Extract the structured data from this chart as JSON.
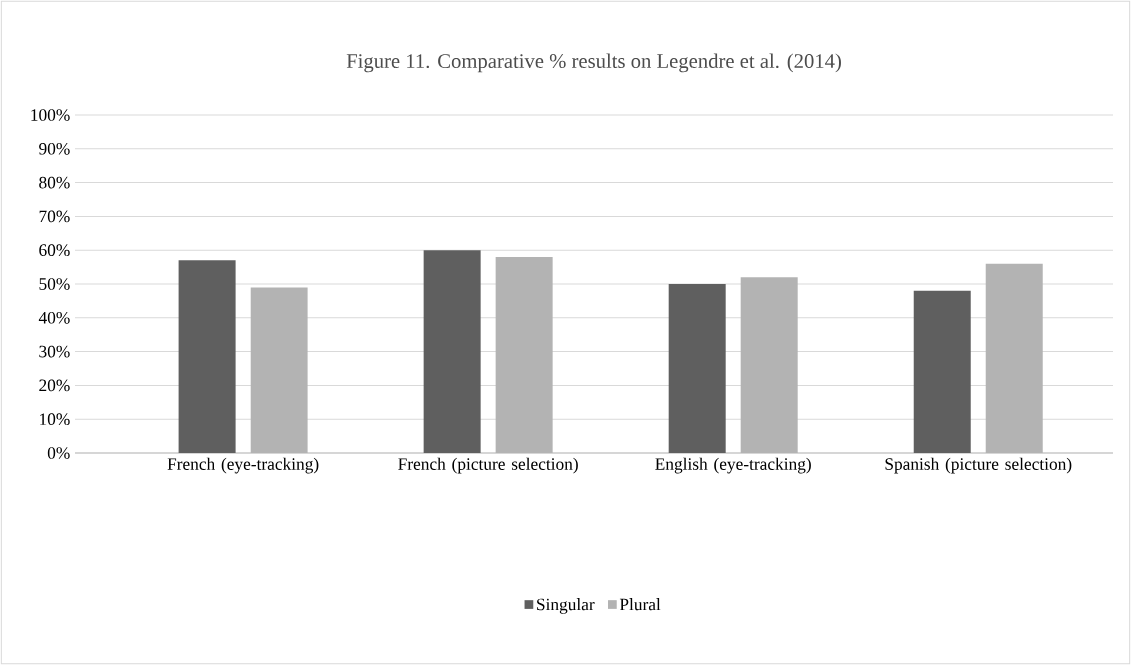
{
  "chart_data": {
    "type": "bar",
    "title": "Figure 11. Comparative % results on Legendre et al. (2014)",
    "categories": [
      "French (eye-tracking)",
      "French (picture selection)",
      "English (eye-tracking)",
      "Spanish (picture selection)"
    ],
    "series": [
      {
        "name": "Singular",
        "color": "#5f5f5f",
        "values": [
          57,
          60,
          50,
          48
        ]
      },
      {
        "name": "Plural",
        "color": "#b3b3b3",
        "values": [
          49,
          58,
          52,
          56
        ]
      }
    ],
    "ylim": [
      0,
      100
    ],
    "yticks": [
      {
        "value": 0,
        "label": "0%"
      },
      {
        "value": 10,
        "label": "10%"
      },
      {
        "value": 20,
        "label": "20%"
      },
      {
        "value": 30,
        "label": "30%"
      },
      {
        "value": 40,
        "label": "40%"
      },
      {
        "value": 50,
        "label": "50%"
      },
      {
        "value": 60,
        "label": "60%"
      },
      {
        "value": 70,
        "label": "70%"
      },
      {
        "value": 80,
        "label": "80%"
      },
      {
        "value": 90,
        "label": "90%"
      },
      {
        "value": 100,
        "label": "100%"
      }
    ],
    "grid": "y",
    "legend": "bottom"
  }
}
